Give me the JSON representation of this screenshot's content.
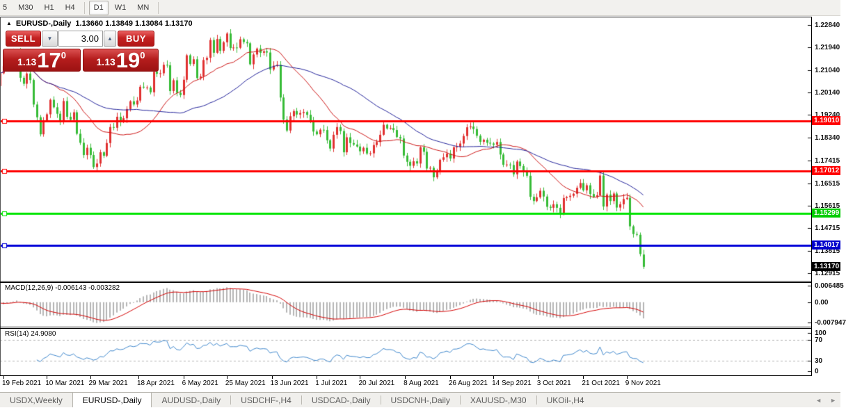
{
  "toolbar": {
    "timeframes": [
      "5",
      "M30",
      "H1",
      "H4",
      "D1",
      "W1",
      "MN"
    ],
    "active": "D1"
  },
  "header": {
    "arrow": "▲",
    "symbol": "EURUSD-,Daily",
    "ohlc": "1.13660 1.13849 1.13084 1.13170"
  },
  "trade": {
    "sell_label": "SELL",
    "buy_label": "BUY",
    "volume": "3.00",
    "spin_down": "▼",
    "spin_up": "▲",
    "sell_price": {
      "prefix": "1.13",
      "big": "17",
      "sup": "0"
    },
    "buy_price": {
      "prefix": "1.13",
      "big": "19",
      "sup": "0"
    },
    "panel_color": "#c52222"
  },
  "chart_data": {
    "type": "candlestick",
    "title": "EURUSD-, Daily",
    "timeframe": "D1",
    "grid": "off",
    "legend_position": "none",
    "bull_color": "#e03030",
    "bear_color": "#36bb36",
    "price_axis_ticks": [
      "1.22840",
      "1.21940",
      "1.21040",
      "1.20140",
      "1.19240",
      "1.18340",
      "1.17415",
      "1.16515",
      "1.15615",
      "1.14715",
      "1.13815",
      "1.12915"
    ],
    "x_labels": [
      {
        "label": "19 Feb 2021",
        "bar": 4
      },
      {
        "label": "10 Mar 2021",
        "bar": 17
      },
      {
        "label": "29 Mar 2021",
        "bar": 30
      },
      {
        "label": "18 Apr 2021",
        "bar": 44.5
      },
      {
        "label": "6 May 2021",
        "bar": 58
      },
      {
        "label": "25 May 2021",
        "bar": 71
      },
      {
        "label": "13 Jun 2021",
        "bar": 84.5
      },
      {
        "label": "1 Jul 2021",
        "bar": 98
      },
      {
        "label": "20 Jul 2021",
        "bar": 111
      },
      {
        "label": "8 Aug 2021",
        "bar": 124.5
      },
      {
        "label": "26 Aug 2021",
        "bar": 138
      },
      {
        "label": "14 Sep 2021",
        "bar": 151
      },
      {
        "label": "3 Oct 2021",
        "bar": 164.5
      },
      {
        "label": "21 Oct 2021",
        "bar": 178
      },
      {
        "label": "9 Nov 2021",
        "bar": 191
      }
    ],
    "closes": [
      1.2128,
      1.2104,
      1.204,
      1.2091,
      1.2119,
      1.2157,
      1.215,
      1.217,
      1.2176,
      1.2073,
      1.2049,
      1.209,
      1.2064,
      1.1966,
      1.1915,
      1.1847,
      1.19,
      1.1927,
      1.1985,
      1.1955,
      1.1929,
      1.1899,
      1.198,
      1.1917,
      1.1905,
      1.1935,
      1.1849,
      1.1813,
      1.1764,
      1.1793,
      1.1764,
      1.1716,
      1.173,
      1.1775,
      1.1761,
      1.1812,
      1.1876,
      1.1873,
      1.1917,
      1.1899,
      1.1911,
      1.1948,
      1.1979,
      1.1966,
      1.1982,
      1.2037,
      1.2034,
      1.2034,
      1.2015,
      1.2097,
      1.2089,
      1.2091,
      1.2125,
      1.2123,
      1.202,
      1.2063,
      1.2013,
      1.2004,
      1.2065,
      1.2163,
      1.2128,
      1.2147,
      1.2072,
      1.2078,
      1.2144,
      1.2153,
      1.2224,
      1.2173,
      1.2228,
      1.2181,
      1.2215,
      1.225,
      1.2192,
      1.2194,
      1.2193,
      1.2227,
      1.2216,
      1.2211,
      1.2127,
      1.2166,
      1.219,
      1.2173,
      1.2179,
      1.2174,
      1.2106,
      1.2121,
      1.2125,
      1.1994,
      1.1906,
      1.1862,
      1.1919,
      1.194,
      1.1926,
      1.1932,
      1.1936,
      1.1925,
      1.1898,
      1.1858,
      1.1847,
      1.1865,
      1.1864,
      1.1823,
      1.179,
      1.1845,
      1.1876,
      1.186,
      1.1775,
      1.1835,
      1.1812,
      1.1806,
      1.1798,
      1.1779,
      1.1793,
      1.177,
      1.1771,
      1.1804,
      1.1816,
      1.1845,
      1.1885,
      1.187,
      1.1872,
      1.1864,
      1.1836,
      1.183,
      1.1762,
      1.1737,
      1.1721,
      1.1739,
      1.173,
      1.1795,
      1.1777,
      1.171,
      1.1713,
      1.1675,
      1.1697,
      1.1745,
      1.1755,
      1.177,
      1.175,
      1.1795,
      1.1797,
      1.181,
      1.184,
      1.1875,
      1.1878,
      1.1868,
      1.1841,
      1.1817,
      1.1825,
      1.1813,
      1.181,
      1.1805,
      1.1816,
      1.1766,
      1.1725,
      1.1726,
      1.1724,
      1.1687,
      1.1738,
      1.172,
      1.1695,
      1.1681,
      1.1597,
      1.158,
      1.1595,
      1.1621,
      1.1598,
      1.1557,
      1.1553,
      1.1567,
      1.1553,
      1.153,
      1.1592,
      1.1596,
      1.1601,
      1.1609,
      1.1633,
      1.1652,
      1.1623,
      1.1643,
      1.1608,
      1.1597,
      1.1603,
      1.1682,
      1.1558,
      1.1606,
      1.158,
      1.161,
      1.1554,
      1.1567,
      1.1588,
      1.1593,
      1.1479,
      1.1448,
      1.1445,
      1.1368,
      1.1317
    ],
    "last_candle_ohlc": {
      "open": 1.1366,
      "high": 1.13849,
      "low": 1.13084,
      "close": 1.1317
    },
    "ma_fast": {
      "period": 20,
      "color": "#cc1414"
    },
    "ma_slow": {
      "period": 45,
      "color": "#23239a"
    },
    "h_lines": [
      {
        "value": 1.1901,
        "label": "1.19010",
        "color": "#ff0000",
        "tag_bg": "#ff0000",
        "width": 3
      },
      {
        "value": 1.17012,
        "label": "1.17012",
        "color": "#ff0000",
        "tag_bg": "#ff0000",
        "width": 3
      },
      {
        "value": 1.15299,
        "label": "1.15299",
        "color": "#00e400",
        "tag_bg": "#00cc00",
        "width": 3
      },
      {
        "value": 1.14017,
        "label": "1.14017",
        "color": "#0000d8",
        "tag_bg": "#0000cc",
        "width": 3
      }
    ],
    "current_price_tag": {
      "value": 1.1317,
      "label": "1.13170",
      "tag_bg": "#000000"
    },
    "macd": {
      "label_text": "MACD(12,26,9) -0.006143 -0.003282",
      "params": [
        12,
        26,
        9
      ],
      "main_value": "-0.006143",
      "signal_value": "-0.003282",
      "axis_labels": [
        {
          "label": "0.006485",
          "value": 0.006485
        },
        {
          "label": "0.00",
          "value": 0
        },
        {
          "label": "-0.007947",
          "value": -0.007947
        }
      ],
      "hist_color": "#b4b4b4",
      "signal_color": "#d40000"
    },
    "rsi": {
      "label_text": "RSI(14) 24.9080",
      "period": 14,
      "current_value": "24.9080",
      "levels": [
        70,
        30
      ],
      "axis_labels": [
        {
          "label": "100",
          "value": 100
        },
        {
          "label": "70",
          "value": 70
        },
        {
          "label": "30",
          "value": 30
        },
        {
          "label": "0",
          "value": 0
        }
      ],
      "line_color": "#3f87cc",
      "level_color": "#b0b0b0"
    }
  },
  "tabs": {
    "items": [
      {
        "label": "USDX,Weekly",
        "active": false
      },
      {
        "label": "EURUSD-,Daily",
        "active": true
      },
      {
        "label": "AUDUSD-,Daily",
        "active": false
      },
      {
        "label": "USDCHF-,H4",
        "active": false
      },
      {
        "label": "USDCAD-,Daily",
        "active": false
      },
      {
        "label": "USDCNH-,Daily",
        "active": false
      },
      {
        "label": "XAUUSD-,M30",
        "active": false
      },
      {
        "label": "UKOil-,H4",
        "active": false
      }
    ],
    "nav_left": "◄",
    "nav_right": "►"
  }
}
